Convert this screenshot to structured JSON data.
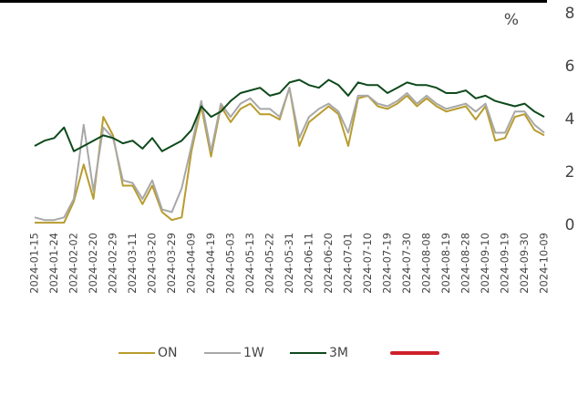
{
  "chart_data": {
    "type": "line",
    "y_unit": "%",
    "categories": [
      "2024-01-15",
      null,
      "2024-01-24",
      null,
      "2024-02-02",
      null,
      "2024-02-20",
      null,
      "2024-02-29",
      null,
      "2024-03-11",
      null,
      "2024-03-20",
      null,
      "2024-03-29",
      null,
      "2024-04-09",
      null,
      "2024-04-19",
      null,
      "2024-05-03",
      null,
      "2024-05-13",
      null,
      "2024-05-22",
      null,
      "2024-05-31",
      null,
      "2024-06-11",
      null,
      "2024-06-20",
      null,
      "2024-07-01",
      null,
      "2024-07-10",
      null,
      "2024-07-19",
      null,
      "2024-07-30",
      null,
      "2024-08-08",
      null,
      "2024-08-19",
      null,
      "2024-08-28",
      null,
      "2024-09-10",
      null,
      "2024-09-19",
      null,
      "2024-09-30",
      null,
      "2024-10-09"
    ],
    "series": [
      {
        "name": "ON",
        "color": "#b89c2e",
        "values": [
          0.1,
          0.1,
          0.1,
          0.1,
          0.9,
          2.3,
          1.0,
          4.1,
          3.4,
          1.5,
          1.5,
          0.8,
          1.5,
          0.5,
          0.2,
          0.3,
          2.8,
          4.5,
          2.6,
          4.5,
          3.9,
          4.4,
          4.6,
          4.2,
          4.2,
          4.0,
          5.2,
          3.0,
          3.9,
          4.2,
          4.5,
          4.2,
          3.0,
          4.8,
          4.9,
          4.5,
          4.4,
          4.6,
          4.9,
          4.5,
          4.8,
          4.5,
          4.3,
          4.4,
          4.5,
          4.0,
          4.5,
          3.2,
          3.3,
          4.1,
          4.2,
          3.6,
          3.4
        ]
      },
      {
        "name": "1W",
        "color": "#a8a8a8",
        "values": [
          0.3,
          0.2,
          0.2,
          0.3,
          1.0,
          3.8,
          1.3,
          3.7,
          3.3,
          1.7,
          1.6,
          1.0,
          1.7,
          0.6,
          0.5,
          1.4,
          3.0,
          4.7,
          2.8,
          4.6,
          4.1,
          4.6,
          4.8,
          4.4,
          4.4,
          4.1,
          5.2,
          3.3,
          4.1,
          4.4,
          4.6,
          4.3,
          3.5,
          4.9,
          4.9,
          4.6,
          4.5,
          4.7,
          5.0,
          4.6,
          4.9,
          4.6,
          4.4,
          4.5,
          4.6,
          4.3,
          4.6,
          3.5,
          3.5,
          4.3,
          4.3,
          3.8,
          3.5
        ]
      },
      {
        "name": "3M",
        "color": "#0e4a1c",
        "values": [
          3.0,
          3.2,
          3.3,
          3.7,
          2.8,
          3.0,
          3.2,
          3.4,
          3.3,
          3.1,
          3.2,
          2.9,
          3.3,
          2.8,
          3.0,
          3.2,
          3.6,
          4.5,
          4.1,
          4.3,
          4.7,
          5.0,
          5.1,
          5.2,
          4.9,
          5.0,
          5.4,
          5.5,
          5.3,
          5.2,
          5.5,
          5.3,
          4.9,
          5.4,
          5.3,
          5.3,
          5.0,
          5.2,
          5.4,
          5.3,
          5.3,
          5.2,
          5.0,
          5.0,
          5.1,
          4.8,
          4.9,
          4.7,
          4.6,
          4.5,
          4.6,
          4.3,
          4.1
        ]
      }
    ],
    "ylim": [
      0,
      8
    ],
    "yticks": [
      0,
      2,
      4,
      6,
      8
    ],
    "y_axis_side": "right"
  }
}
